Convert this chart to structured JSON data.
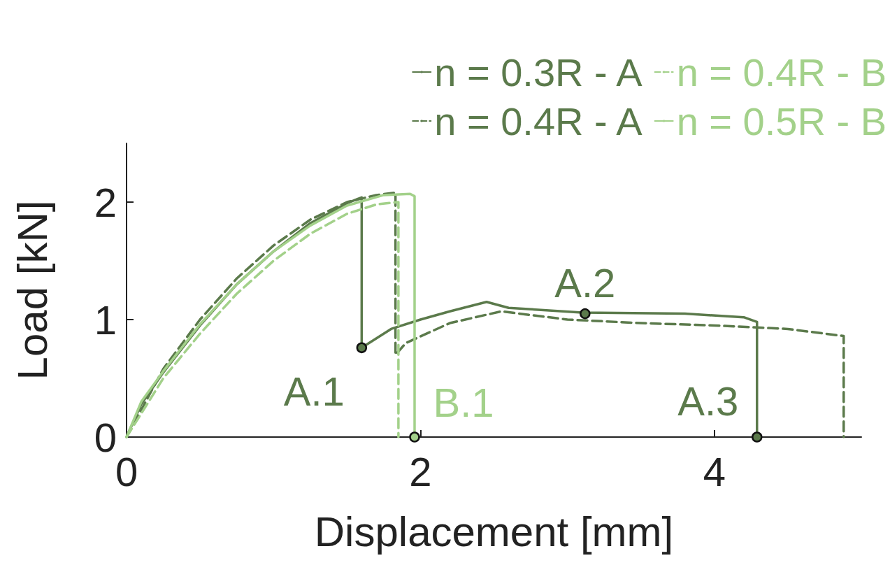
{
  "chart_data": {
    "type": "line",
    "xlabel": "Displacement [mm]",
    "ylabel": "Load [kN]",
    "xlim": [
      0,
      5
    ],
    "ylim": [
      0,
      2.5
    ],
    "xticks": [
      0,
      2,
      4
    ],
    "yticks": [
      0,
      1,
      2
    ],
    "grid": false,
    "legend": "top right",
    "marker": "none",
    "series": [
      {
        "name": "n = 0.3R - A",
        "color": "#5b7a4b",
        "line_style": "solid",
        "x": [
          0,
          0.1,
          0.25,
          0.5,
          0.75,
          1.0,
          1.25,
          1.5,
          1.6,
          1.6,
          1.8,
          2.0,
          2.2,
          2.45,
          2.6,
          3.1,
          3.8,
          4.2,
          4.29,
          4.29
        ],
        "values": [
          0,
          0.28,
          0.55,
          0.95,
          1.3,
          1.58,
          1.82,
          1.99,
          2.04,
          0.76,
          0.92,
          1.0,
          1.07,
          1.15,
          1.1,
          1.06,
          1.05,
          1.02,
          0.98,
          0
        ]
      },
      {
        "name": "n = 0.4R - A",
        "color": "#5b7a4b",
        "line_style": "dashed",
        "x": [
          0,
          0.25,
          0.5,
          0.75,
          1.0,
          1.25,
          1.5,
          1.7,
          1.83,
          1.83,
          1.9,
          2.2,
          2.55,
          3.0,
          3.5,
          4.0,
          4.5,
          4.88,
          4.88
        ],
        "values": [
          0,
          0.58,
          1.0,
          1.35,
          1.63,
          1.85,
          2.0,
          2.06,
          2.08,
          0.7,
          0.8,
          0.97,
          1.07,
          1.0,
          0.97,
          0.95,
          0.92,
          0.86,
          0
        ]
      },
      {
        "name": "n = 0.4R - B",
        "color": "#a3d18a",
        "line_style": "dashed",
        "x": [
          0,
          0.25,
          0.5,
          0.75,
          1.0,
          1.25,
          1.5,
          1.7,
          1.85,
          1.85
        ],
        "values": [
          0,
          0.5,
          0.88,
          1.22,
          1.5,
          1.73,
          1.9,
          1.98,
          2.0,
          0
        ]
      },
      {
        "name": "n = 0.5R - B",
        "color": "#a3d18a",
        "line_style": "solid",
        "x": [
          0,
          0.1,
          0.25,
          0.5,
          0.75,
          1.0,
          1.25,
          1.5,
          1.75,
          1.93,
          1.96,
          1.96
        ],
        "values": [
          0,
          0.3,
          0.56,
          0.96,
          1.3,
          1.58,
          1.8,
          1.97,
          2.06,
          2.07,
          2.05,
          0
        ]
      },
      {
        "type": "scatter",
        "marker": "circle",
        "x": [
          1.6,
          3.12,
          4.29,
          1.96
        ],
        "values": [
          0.76,
          1.05,
          0,
          0
        ],
        "colors": [
          "#5b7a4b",
          "#5b7a4b",
          "#5b7a4b",
          "#a3d18a"
        ]
      }
    ],
    "annotations": [
      {
        "text": "A.1",
        "x": 1.6,
        "y": 0.76
      },
      {
        "text": "A.2",
        "x": 3.12,
        "y": 1.05
      },
      {
        "text": "A.3",
        "x": 4.29,
        "y": 0
      },
      {
        "text": "B.1",
        "x": 1.96,
        "y": 0
      }
    ]
  }
}
